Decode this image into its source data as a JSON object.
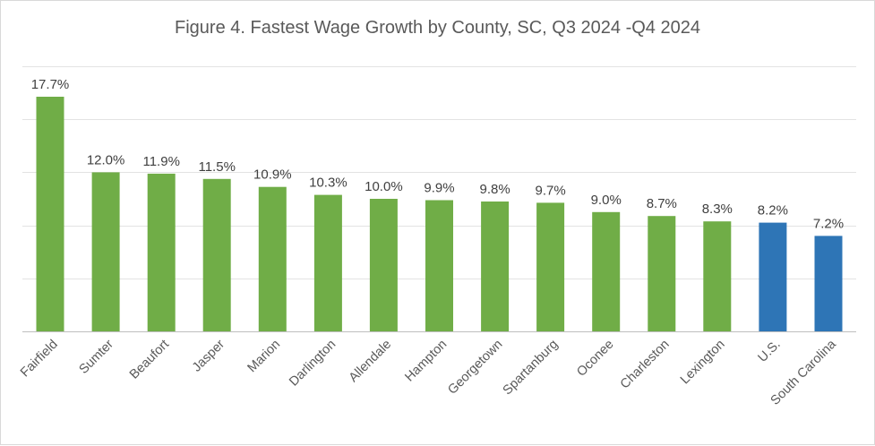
{
  "chart_data": {
    "type": "bar",
    "title": "Figure 4. Fastest Wage Growth by County, SC, Q3 2024 -Q4 2024",
    "categories": [
      "Fairfield",
      "Sumter",
      "Beaufort",
      "Jasper",
      "Marion",
      "Darlington",
      "Allendale",
      "Hampton",
      "Georgetown",
      "Spartanburg",
      "Oconee",
      "Charleston",
      "Lexington",
      "U.S.",
      "South Carolina"
    ],
    "values": [
      17.7,
      12.0,
      11.9,
      11.5,
      10.9,
      10.3,
      10.0,
      9.9,
      9.8,
      9.7,
      9.0,
      8.7,
      8.3,
      8.2,
      7.2
    ],
    "data_labels": [
      "17.7%",
      "12.0%",
      "11.9%",
      "11.5%",
      "10.9%",
      "10.3%",
      "10.0%",
      "9.9%",
      "9.8%",
      "9.7%",
      "9.0%",
      "8.7%",
      "8.3%",
      "8.2%",
      "7.2%"
    ],
    "ylim": [
      0,
      20
    ],
    "grid": true,
    "yaxis_labels_shown": false,
    "legend": "none",
    "colors": {
      "county": "#70ad47",
      "benchmark": "#2e75b6",
      "grid": "#e3e3e3",
      "text": "#595959"
    },
    "benchmark_categories": [
      "U.S.",
      "South Carolina"
    ]
  }
}
